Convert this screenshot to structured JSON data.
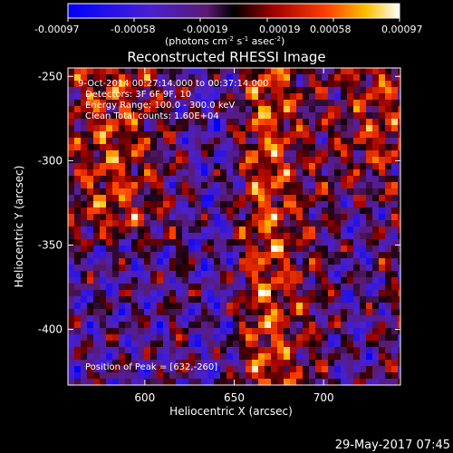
{
  "colorbar": {
    "ticks": [
      "-0.00097",
      "-0.00058",
      "-0.00019",
      "0.00019",
      "0.00058",
      "0.00097"
    ],
    "unit_text": "(photons cm",
    "unit_exp1": "-2",
    "unit_mid": " s",
    "unit_exp2": "-1",
    "unit_mid2": " asec",
    "unit_exp3": "-2",
    "unit_close": ")"
  },
  "annotations": {
    "time_range": "9-Oct-2014 00:27:14.000 to 00:37:14.000",
    "detectors": "Detectors: 3F 6F 9F, 10",
    "energy": "Energy Range: 100.0 - 300.0 keV",
    "clean": "Clean    Total counts: 1.60E+04",
    "peak": "Position of Peak = [632,-260]"
  },
  "footer_timestamp": "29-May-2017 07:45",
  "colors": {
    "background": "#000000",
    "text": "#ffffff"
  },
  "chart_data": {
    "type": "heatmap",
    "title": "Reconstructed RHESSI Image",
    "xlabel": "Heliocentric X (arcsec)",
    "ylabel": "Heliocentric Y (arcsec)",
    "xlim": [
      557,
      743
    ],
    "ylim": [
      -433,
      -245
    ],
    "x_ticks": [
      600,
      650,
      700
    ],
    "y_ticks": [
      -250,
      -300,
      -350,
      -400
    ],
    "colorbar_range": [
      -0.00097,
      0.00097
    ],
    "peak": [
      632,
      -260
    ],
    "grid": false
  }
}
